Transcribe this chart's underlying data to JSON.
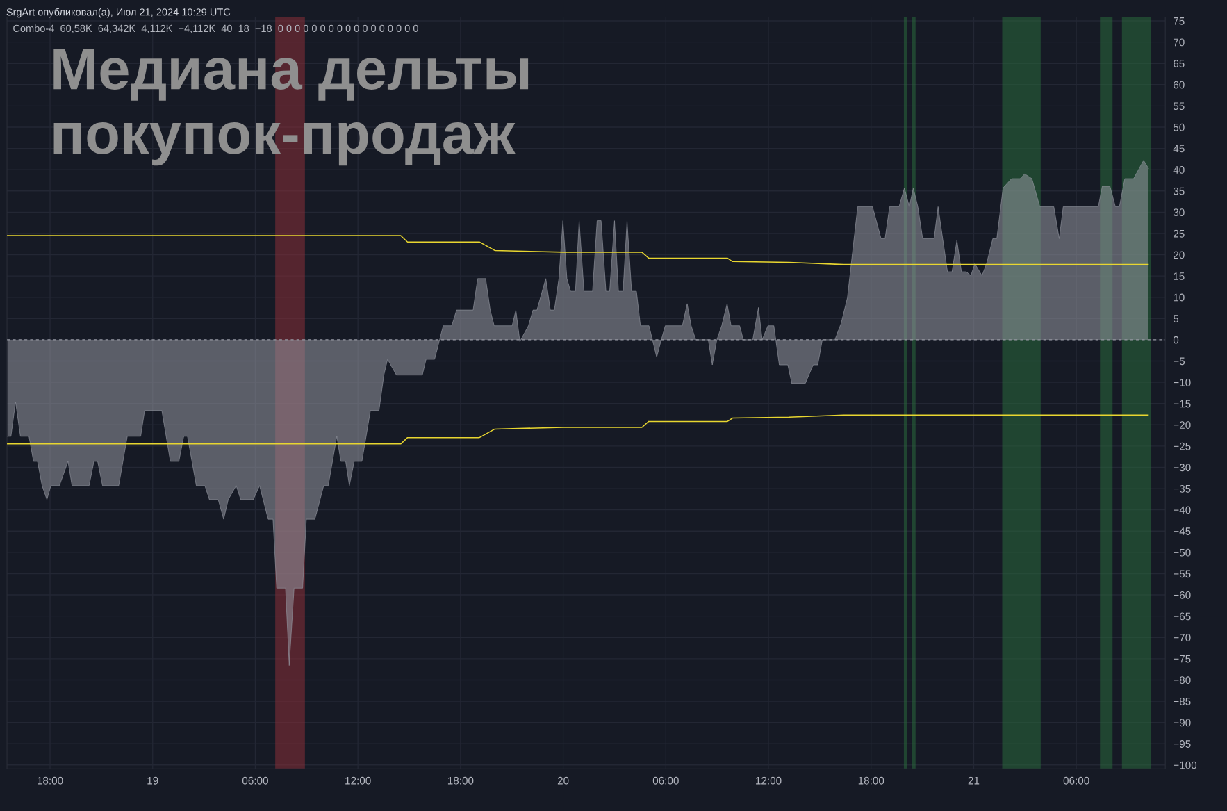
{
  "chart_data": {
    "type": "area",
    "title": "Медиана дельты покупок-продаж",
    "subtitle": "SrgArt опубликовал(а), Июл 21, 2024 10:29 UTC",
    "annotations": [
      "Combo-4  60,58K  64,342K  4,112K  −4,112K  40  18  −18  0 0 0 0 0 0 0 0 0 0 0 0 0 0 0 0 0"
    ],
    "xlim": [
      "2024-07-18T15:29",
      "2024-07-21T11:12"
    ],
    "ylim": [
      -100.9,
      75.9
    ],
    "xticks": [
      {
        "value": "2024-07-18T18:00",
        "label": "18:00"
      },
      {
        "value": "2024-07-19T00:00",
        "label": "19"
      },
      {
        "value": "2024-07-19T06:00",
        "label": "06:00"
      },
      {
        "value": "2024-07-19T12:00",
        "label": "12:00"
      },
      {
        "value": "2024-07-19T18:00",
        "label": "18:00"
      },
      {
        "value": "2024-07-20T00:00",
        "label": "20"
      },
      {
        "value": "2024-07-20T06:00",
        "label": "06:00"
      },
      {
        "value": "2024-07-20T12:00",
        "label": "12:00"
      },
      {
        "value": "2024-07-20T18:00",
        "label": "18:00"
      },
      {
        "value": "2024-07-21T00:00",
        "label": "21"
      },
      {
        "value": "2024-07-21T06:00",
        "label": "06:00"
      }
    ],
    "yticks": [
      {
        "value": -100,
        "label": "−100"
      },
      {
        "value": -95,
        "label": "−95"
      },
      {
        "value": -90,
        "label": "−90"
      },
      {
        "value": -85,
        "label": "−85"
      },
      {
        "value": -80,
        "label": "−80"
      },
      {
        "value": -75,
        "label": "−75"
      },
      {
        "value": -70,
        "label": "−70"
      },
      {
        "value": -65,
        "label": "−65"
      },
      {
        "value": -60,
        "label": "−60"
      },
      {
        "value": -55,
        "label": "−55"
      },
      {
        "value": -50,
        "label": "−50"
      },
      {
        "value": -45,
        "label": "−45"
      },
      {
        "value": -40,
        "label": "−40"
      },
      {
        "value": -35,
        "label": "−35"
      },
      {
        "value": -30,
        "label": "−30"
      },
      {
        "value": -25,
        "label": "−25"
      },
      {
        "value": -20,
        "label": "−20"
      },
      {
        "value": -15,
        "label": "−15"
      },
      {
        "value": -10,
        "label": "−10"
      },
      {
        "value": -5,
        "label": "−5"
      },
      0,
      5,
      10,
      15,
      20,
      25,
      30,
      35,
      40,
      45,
      50,
      55,
      60,
      65,
      70,
      75
    ],
    "grid": true,
    "series": [
      {
        "color": "#9598a1",
        "x": [
          "2024-07-18T15:30",
          "2024-07-18T15:43",
          "2024-07-18T15:59",
          "2024-07-18T16:16",
          "2024-07-18T16:46",
          "2024-07-18T17:02",
          "2024-07-18T17:16",
          "2024-07-18T17:32",
          "2024-07-18T17:49",
          "2024-07-18T18:03",
          "2024-07-18T18:33",
          "2024-07-18T19:03",
          "2024-07-18T19:17",
          "2024-07-18T20:17",
          "2024-07-18T20:34",
          "2024-07-18T20:47",
          "2024-07-18T21:04",
          "2024-07-18T22:01",
          "2024-07-18T22:31",
          "2024-07-18T23:18",
          "2024-07-18T23:32",
          "2024-07-19T00:32",
          "2024-07-19T01:02",
          "2024-07-19T01:32",
          "2024-07-19T01:49",
          "2024-07-19T02:02",
          "2024-07-19T02:33",
          "2024-07-19T03:03",
          "2024-07-19T03:19",
          "2024-07-19T03:50",
          "2024-07-19T04:09",
          "2024-07-19T04:25",
          "2024-07-19T04:53",
          "2024-07-19T05:09",
          "2024-07-19T05:53",
          "2024-07-19T06:15",
          "2024-07-19T06:45",
          "2024-07-19T07:02",
          "2024-07-19T07:15",
          "2024-07-19T07:46",
          "2024-07-19T07:59",
          "2024-07-19T08:16",
          "2024-07-19T08:46",
          "2024-07-19T08:59",
          "2024-07-19T09:29",
          "2024-07-19T10:00",
          "2024-07-19T10:16",
          "2024-07-19T10:46",
          "2024-07-19T11:00",
          "2024-07-19T11:17",
          "2024-07-19T11:30",
          "2024-07-19T11:47",
          "2024-07-19T12:14",
          "2024-07-19T12:44",
          "2024-07-19T13:14",
          "2024-07-19T13:31",
          "2024-07-19T13:44",
          "2024-07-19T14:15",
          "2024-07-19T15:46",
          "2024-07-19T15:59",
          "2024-07-19T16:29",
          "2024-07-19T16:59",
          "2024-07-19T17:29",
          "2024-07-19T17:46",
          "2024-07-19T18:44",
          "2024-07-19T19:00",
          "2024-07-19T19:28",
          "2024-07-19T19:44",
          "2024-07-19T19:58",
          "2024-07-19T21:01",
          "2024-07-19T21:14",
          "2024-07-19T21:28",
          "2024-07-19T21:58",
          "2024-07-19T22:14",
          "2024-07-19T22:28",
          "2024-07-19T22:59",
          "2024-07-19T23:15",
          "2024-07-19T23:29",
          "2024-07-19T23:45",
          "2024-07-19T23:59",
          "2024-07-20T00:13",
          "2024-07-20T00:26",
          "2024-07-20T00:43",
          "2024-07-20T00:56",
          "2024-07-20T01:13",
          "2024-07-20T01:43",
          "2024-07-20T01:59",
          "2024-07-20T02:13",
          "2024-07-20T02:30",
          "2024-07-20T02:43",
          "2024-07-20T03:00",
          "2024-07-20T03:14",
          "2024-07-20T03:30",
          "2024-07-20T03:44",
          "2024-07-20T04:00",
          "2024-07-20T04:17",
          "2024-07-20T04:31",
          "2024-07-20T05:01",
          "2024-07-20T05:28",
          "2024-07-20T05:44",
          "2024-07-20T05:58",
          "2024-07-20T06:58",
          "2024-07-20T07:15",
          "2024-07-20T07:29",
          "2024-07-20T07:45",
          "2024-07-20T08:29",
          "2024-07-20T08:43",
          "2024-07-20T08:59",
          "2024-07-20T09:16",
          "2024-07-20T09:35",
          "2024-07-20T09:49",
          "2024-07-20T10:19",
          "2024-07-20T10:32",
          "2024-07-20T11:05",
          "2024-07-20T11:25",
          "2024-07-20T11:38",
          "2024-07-20T11:58",
          "2024-07-20T12:19",
          "2024-07-20T12:38",
          "2024-07-20T13:08",
          "2024-07-20T13:22",
          "2024-07-20T14:09",
          "2024-07-20T14:37",
          "2024-07-20T14:53",
          "2024-07-20T15:09",
          "2024-07-20T15:53",
          "2024-07-20T16:15",
          "2024-07-20T16:37",
          "2024-07-20T17:13",
          "2024-07-20T18:05",
          "2024-07-20T18:35",
          "2024-07-20T18:49",
          "2024-07-20T19:05",
          "2024-07-20T19:38",
          "2024-07-20T19:57",
          "2024-07-20T20:14",
          "2024-07-20T20:28",
          "2024-07-20T20:44",
          "2024-07-20T21:01",
          "2024-07-20T21:41",
          "2024-07-20T21:55",
          "2024-07-20T22:28",
          "2024-07-20T22:44",
          "2024-07-20T23:01",
          "2024-07-20T23:17",
          "2024-07-20T23:34",
          "2024-07-20T23:50",
          "2024-07-21T00:04",
          "2024-07-21T00:29",
          "2024-07-21T00:45",
          "2024-07-21T01:07",
          "2024-07-21T01:21",
          "2024-07-21T01:43",
          "2024-07-21T02:13",
          "2024-07-21T02:43",
          "2024-07-21T02:59",
          "2024-07-21T03:24",
          "2024-07-21T03:52",
          "2024-07-21T04:41",
          "2024-07-21T05:00",
          "2024-07-21T05:14",
          "2024-07-21T07:17",
          "2024-07-21T07:31",
          "2024-07-21T07:58",
          "2024-07-21T08:17",
          "2024-07-21T08:31",
          "2024-07-21T08:50",
          "2024-07-21T09:21",
          "2024-07-21T09:56",
          "2024-07-21T10:13"
        ],
        "values": [
          -22.7,
          -22.7,
          -14.6,
          -22.7,
          -22.7,
          -28.6,
          -28.6,
          -34.3,
          -37.6,
          -34.3,
          -34.3,
          -28.6,
          -34.3,
          -34.3,
          -28.6,
          -28.6,
          -34.3,
          -34.3,
          -22.7,
          -22.7,
          -16.6,
          -16.6,
          -28.6,
          -28.6,
          -22.7,
          -22.7,
          -34.3,
          -34.3,
          -37.6,
          -37.6,
          -42.2,
          -37.6,
          -34.3,
          -37.6,
          -37.6,
          -34.3,
          -42.2,
          -42.2,
          -58.4,
          -58.4,
          -76.6,
          -58.4,
          -58.4,
          -42.2,
          -42.2,
          -34.3,
          -34.3,
          -22.7,
          -28.6,
          -28.6,
          -34.3,
          -28.6,
          -28.6,
          -16.6,
          -16.6,
          -8.3,
          -4.6,
          -8.3,
          -8.3,
          -4.6,
          -4.6,
          3.3,
          3.3,
          7.0,
          7.0,
          14.4,
          14.4,
          7.0,
          3.3,
          3.3,
          7.0,
          -0.4,
          3.3,
          7.0,
          7.0,
          14.4,
          7.0,
          7.0,
          14.4,
          28.0,
          14.4,
          11.4,
          11.4,
          28.0,
          11.4,
          11.4,
          28.0,
          28.0,
          11.4,
          11.4,
          28.0,
          11.4,
          11.4,
          28.0,
          11.4,
          11.4,
          3.3,
          3.3,
          -4.1,
          0,
          3.3,
          3.3,
          8.5,
          3.3,
          0,
          0,
          -5.9,
          0,
          3.3,
          8.5,
          3.3,
          3.3,
          0,
          0,
          7.6,
          0,
          3.3,
          3.3,
          -5.9,
          -5.9,
          -10.3,
          -10.3,
          -5.9,
          -5.9,
          0,
          0,
          3.9,
          9.9,
          31.3,
          31.3,
          23.8,
          23.8,
          31.3,
          31.3,
          35.7,
          31.3,
          35.7,
          31.3,
          23.8,
          23.8,
          31.3,
          16.0,
          16.0,
          23.4,
          16.0,
          16.0,
          15.1,
          17.9,
          15.1,
          17.9,
          23.8,
          23.8,
          35.7,
          37.9,
          37.9,
          39.0,
          37.9,
          31.3,
          31.3,
          23.8,
          31.3,
          31.3,
          36.1,
          36.1,
          31.3,
          31.3,
          37.9,
          37.9,
          42.2,
          40.3
        ]
      },
      {
        "type": "line",
        "color": "#e8d630",
        "x": [
          "2024-07-18T15:30",
          "2024-07-19T14:30",
          "2024-07-19T14:54",
          "2024-07-19T19:06",
          "2024-07-19T20:00",
          "2024-07-20T00:00",
          "2024-07-20T04:36",
          "2024-07-20T05:00",
          "2024-07-20T09:36",
          "2024-07-20T09:54",
          "2024-07-20T13:12",
          "2024-07-20T16:24",
          "2024-07-21T10:12"
        ],
        "values": [
          24.5,
          24.5,
          23.0,
          23.0,
          21.0,
          20.6,
          20.6,
          19.2,
          19.2,
          18.4,
          18.2,
          17.7,
          17.7
        ]
      },
      {
        "type": "line",
        "color": "#e8d630",
        "x": [
          "2024-07-18T15:30",
          "2024-07-19T14:30",
          "2024-07-19T14:54",
          "2024-07-19T19:06",
          "2024-07-19T20:00",
          "2024-07-20T00:00",
          "2024-07-20T04:36",
          "2024-07-20T05:00",
          "2024-07-20T09:36",
          "2024-07-20T09:54",
          "2024-07-20T13:12",
          "2024-07-20T16:24",
          "2024-07-21T10:12"
        ],
        "values": [
          -24.5,
          -24.5,
          -23.0,
          -23.0,
          -21.0,
          -20.6,
          -20.6,
          -19.2,
          -19.2,
          -18.4,
          -18.2,
          -17.7,
          -17.7
        ]
      }
    ],
    "ref_lines": [
      {
        "axis": "y",
        "value": 0,
        "color": "#9598a1",
        "line_style": "dashed"
      }
    ],
    "bands": [
      {
        "axis": "x",
        "from": "2024-07-19T07:10",
        "to": "2024-07-19T08:54",
        "color": "#8a3038"
      },
      {
        "axis": "x",
        "from": "2024-07-20T19:55",
        "to": "2024-07-20T20:05",
        "color": "#2a6a3c"
      },
      {
        "axis": "x",
        "from": "2024-07-20T20:22",
        "to": "2024-07-20T20:36",
        "color": "#2a6a3c"
      },
      {
        "axis": "x",
        "from": "2024-07-21T01:40",
        "to": "2024-07-21T03:55",
        "color": "#2a6a3c"
      },
      {
        "axis": "x",
        "from": "2024-07-21T07:23",
        "to": "2024-07-21T08:07",
        "color": "#2a6a3c"
      },
      {
        "axis": "x",
        "from": "2024-07-21T08:40",
        "to": "2024-07-21T10:21",
        "color": "#2a6a3c"
      }
    ]
  }
}
